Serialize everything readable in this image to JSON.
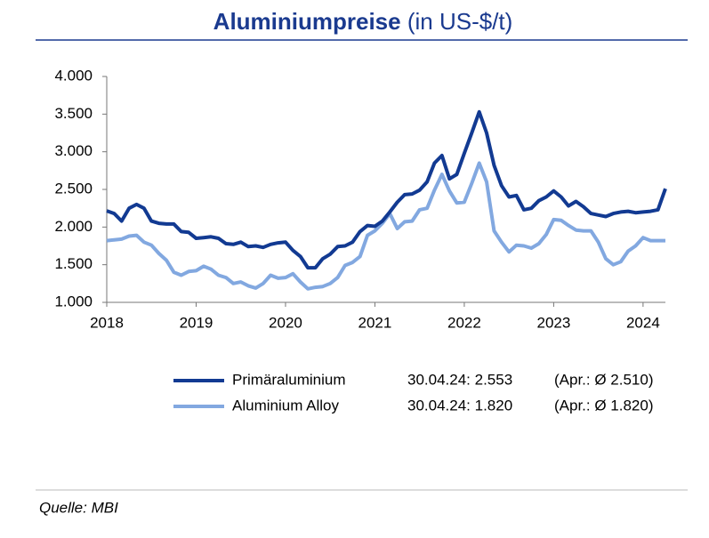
{
  "chart_data": {
    "type": "line",
    "title": "Aluminiumpreise",
    "title_unit": "(in US-$/t)",
    "source": "Quelle: MBI",
    "categories": [
      "2018",
      null,
      null,
      null,
      null,
      null,
      null,
      null,
      null,
      null,
      null,
      null,
      "2019",
      null,
      null,
      null,
      null,
      null,
      null,
      null,
      null,
      null,
      null,
      null,
      "2020",
      null,
      null,
      null,
      null,
      null,
      null,
      null,
      null,
      null,
      null,
      null,
      "2021",
      null,
      null,
      null,
      null,
      null,
      null,
      null,
      null,
      null,
      null,
      null,
      "2022",
      null,
      null,
      null,
      null,
      null,
      null,
      null,
      null,
      null,
      null,
      null,
      "2023",
      null,
      null,
      null,
      null,
      null,
      null,
      null,
      null,
      null,
      null,
      null,
      "2024",
      null,
      null,
      null
    ],
    "series": [
      {
        "name": "Primäraluminium",
        "color": "#123a92",
        "latest": "30.04.24: 2.553",
        "month_avg": "(Apr.: Ø 2.510)",
        "values": [
          2215,
          2180,
          2080,
          2250,
          2300,
          2250,
          2080,
          2050,
          2040,
          2040,
          1940,
          1930,
          1850,
          1860,
          1870,
          1850,
          1780,
          1770,
          1800,
          1740,
          1750,
          1730,
          1770,
          1790,
          1800,
          1690,
          1610,
          1460,
          1460,
          1580,
          1640,
          1740,
          1750,
          1800,
          1940,
          2020,
          2010,
          2080,
          2200,
          2330,
          2430,
          2440,
          2490,
          2600,
          2850,
          2950,
          2640,
          2700,
          2980,
          3250,
          3530,
          3250,
          2820,
          2550,
          2400,
          2420,
          2230,
          2250,
          2350,
          2400,
          2480,
          2400,
          2280,
          2340,
          2270,
          2180,
          2160,
          2140,
          2180,
          2200,
          2210,
          2190,
          2200,
          2210,
          2230,
          2510
        ]
      },
      {
        "name": "Aluminium Alloy",
        "color": "#82a8e0",
        "latest": "30.04.24: 1.820",
        "month_avg": "(Apr.: Ø 1.820)",
        "values": [
          1820,
          1830,
          1840,
          1880,
          1890,
          1800,
          1760,
          1650,
          1560,
          1400,
          1360,
          1410,
          1420,
          1480,
          1440,
          1360,
          1330,
          1250,
          1270,
          1220,
          1190,
          1250,
          1360,
          1320,
          1330,
          1380,
          1270,
          1180,
          1200,
          1210,
          1250,
          1330,
          1490,
          1530,
          1610,
          1890,
          1950,
          2050,
          2180,
          1980,
          2070,
          2080,
          2230,
          2250,
          2490,
          2700,
          2480,
          2320,
          2330,
          2580,
          2850,
          2600,
          1950,
          1800,
          1670,
          1760,
          1750,
          1720,
          1780,
          1900,
          2100,
          2090,
          2020,
          1960,
          1950,
          1950,
          1800,
          1580,
          1500,
          1540,
          1680,
          1750,
          1860,
          1820,
          1820,
          1820
        ]
      }
    ],
    "ylim": [
      1000,
      4000
    ],
    "yticks": [
      {
        "value": 1000,
        "label": "1.000"
      },
      {
        "value": 1500,
        "label": "1.500"
      },
      {
        "value": 2000,
        "label": "2.000"
      },
      {
        "value": 2500,
        "label": "2.500"
      },
      {
        "value": 3000,
        "label": "3.000"
      },
      {
        "value": 3500,
        "label": "3.500"
      },
      {
        "value": 4000,
        "label": "4.000"
      }
    ],
    "grid": false
  }
}
